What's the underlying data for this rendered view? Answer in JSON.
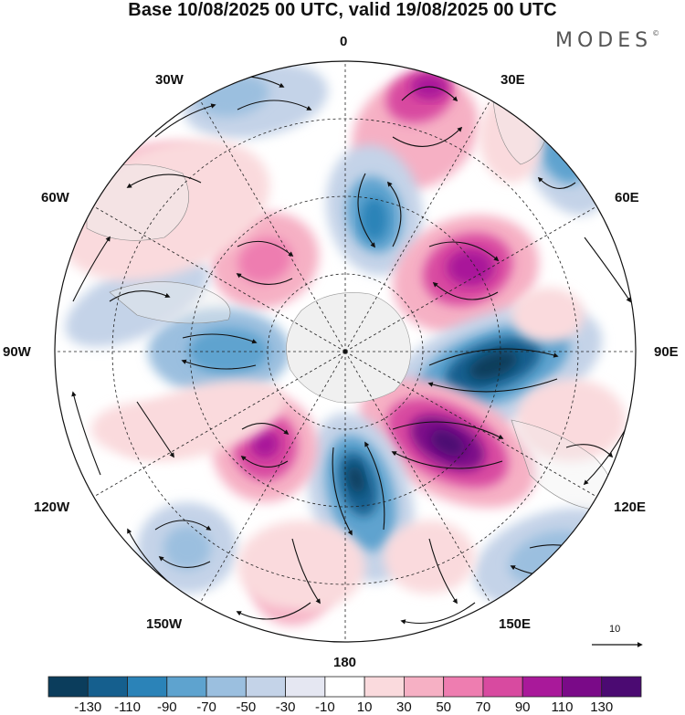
{
  "title": "Base 10/08/2025 00 UTC, valid 19/08/2025 00 UTC",
  "brand": {
    "name": "MODES",
    "mark": "©"
  },
  "map": {
    "projection": "north polar stereographic",
    "longitude_labels": {
      "lon_0": "0",
      "lon_30e": "30E",
      "lon_60e": "60E",
      "lon_90e": "90E",
      "lon_120e": "120E",
      "lon_150e": "150E",
      "lon_180": "180",
      "lon_150w": "150W",
      "lon_120w": "120W",
      "lon_90w": "90W",
      "lon_60w": "60W",
      "lon_30w": "30W"
    },
    "reference_vector_label": "10",
    "colors": {
      "land": "#f0f0f0",
      "coast": "#888888",
      "grid": "#222222",
      "stream": "#111111"
    }
  },
  "colorbar": {
    "labels": [
      "-130",
      "-110",
      "-90",
      "-70",
      "-50",
      "-30",
      "-10",
      "10",
      "30",
      "50",
      "70",
      "90",
      "110",
      "130"
    ],
    "colors": [
      "#0b3d5c",
      "#155f8e",
      "#2b83b8",
      "#5ea3cf",
      "#9bbfdf",
      "#c4d3e8",
      "#e5e7f2",
      "#ffffff",
      "#fadadd",
      "#f6b0c4",
      "#ee7db0",
      "#d84aa0",
      "#a9199a",
      "#7a0a88",
      "#4b0a72"
    ]
  }
}
